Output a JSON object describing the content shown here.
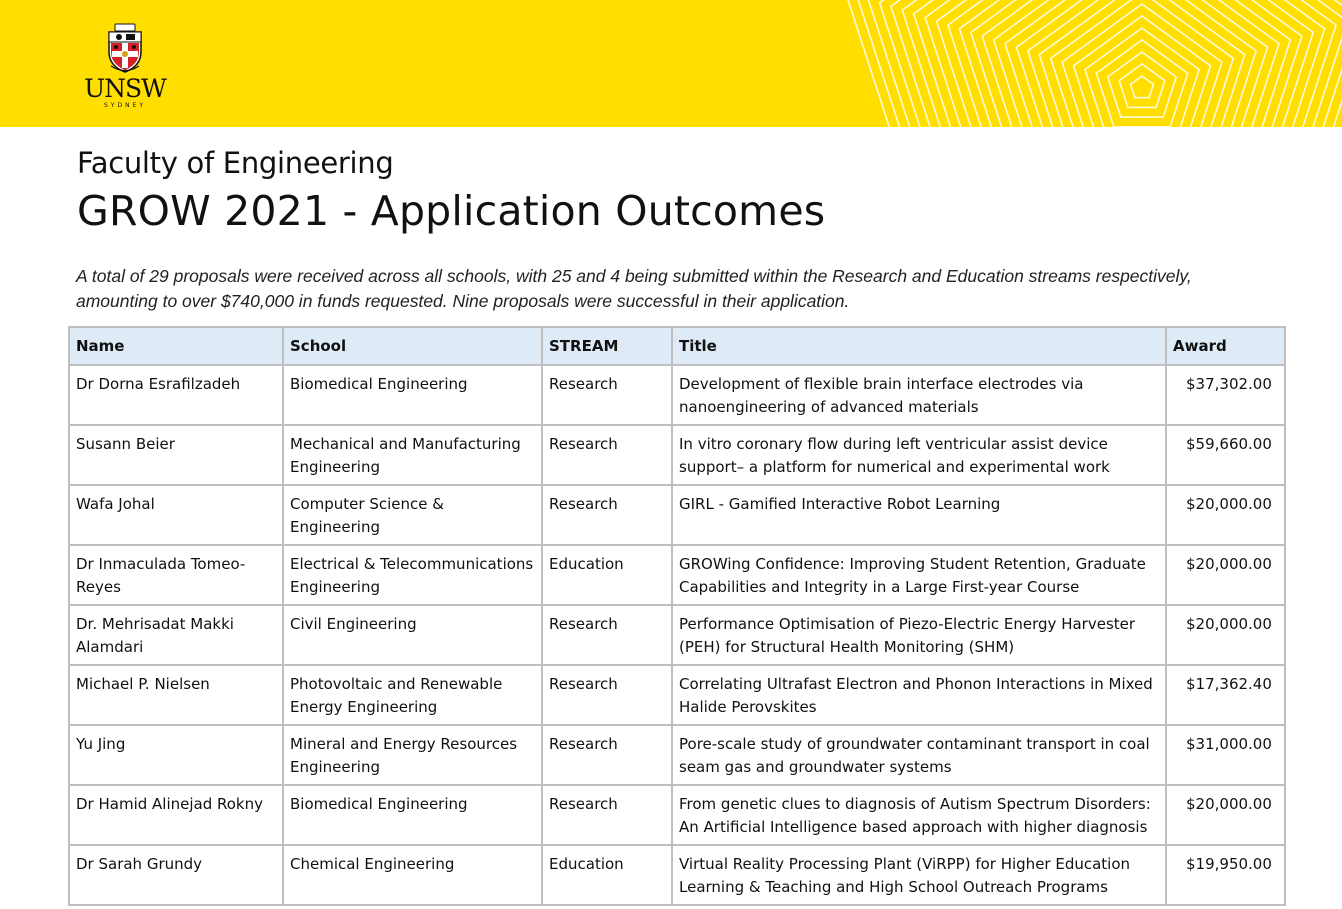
{
  "logo": {
    "wordmark": "UNSW",
    "subtext": "SYDNEY"
  },
  "heading": {
    "faculty": "Faculty of Engineering",
    "title": "GROW 2021 - Application Outcomes"
  },
  "intro": "A total of 29 proposals were received across all schools, with 25 and 4 being submitted within the Research and Education streams respectively, amounting to over $740,000 in funds requested. Nine proposals were successful in their application.",
  "table": {
    "headers": [
      "Name",
      "School",
      "STREAM",
      "Title",
      "Award"
    ],
    "currency": "$",
    "rows": [
      {
        "name": "Dr Dorna Esrafilzadeh",
        "school": "Biomedical Engineering",
        "stream": "Research",
        "title": "Development of flexible brain interface electrodes via nanoengineering of advanced materials",
        "award": "37,302.00"
      },
      {
        "name": "Susann Beier",
        "school": "Mechanical and Manufacturing Engineering",
        "stream": "Research",
        "title": "In vitro coronary flow during left ventricular assist device support– a platform for numerical and experimental work",
        "award": "59,660.00"
      },
      {
        "name": "Wafa Johal",
        "school": "Computer Science & Engineering",
        "stream": "Research",
        "title": "GIRL - Gamified Interactive Robot Learning",
        "award": "20,000.00"
      },
      {
        "name": "Dr Inmaculada Tomeo-Reyes",
        "school": "Electrical & Telecommunications Engineering",
        "stream": "Education",
        "title": "GROWing Confidence: Improving Student Retention, Graduate Capabilities and Integrity in a Large First-year Course",
        "award": "20,000.00"
      },
      {
        "name": "Dr. Mehrisadat Makki Alamdari",
        "school": "Civil Engineering",
        "stream": "Research",
        "title": "Performance Optimisation of Piezo-Electric Energy Harvester (PEH) for Structural Health Monitoring (SHM)",
        "award": "20,000.00"
      },
      {
        "name": "Michael P. Nielsen",
        "school": "Photovoltaic and Renewable Energy Engineering",
        "stream": "Research",
        "title": "Correlating Ultrafast Electron and Phonon Interactions in Mixed Halide Perovskites",
        "award": "17,362.40"
      },
      {
        "name": "Yu Jing",
        "school": "Mineral and Energy Resources Engineering",
        "stream": "Research",
        "title": "Pore-scale study of groundwater contaminant transport in coal seam gas and groundwater systems",
        "award": "31,000.00"
      },
      {
        "name": "Dr Hamid Alinejad Rokny",
        "school": "Biomedical Engineering",
        "stream": "Research",
        "title": "From genetic clues to diagnosis of Autism Spectrum Disorders: An Artificial Intelligence based approach with higher diagnosis",
        "award": "20,000.00"
      },
      {
        "name": "Dr Sarah Grundy",
        "school": "Chemical Engineering",
        "stream": "Education",
        "title": "Virtual Reality Processing Plant (ViRPP) for Higher Education Learning & Teaching and High School Outreach Programs",
        "award": "19,950.00"
      }
    ]
  }
}
